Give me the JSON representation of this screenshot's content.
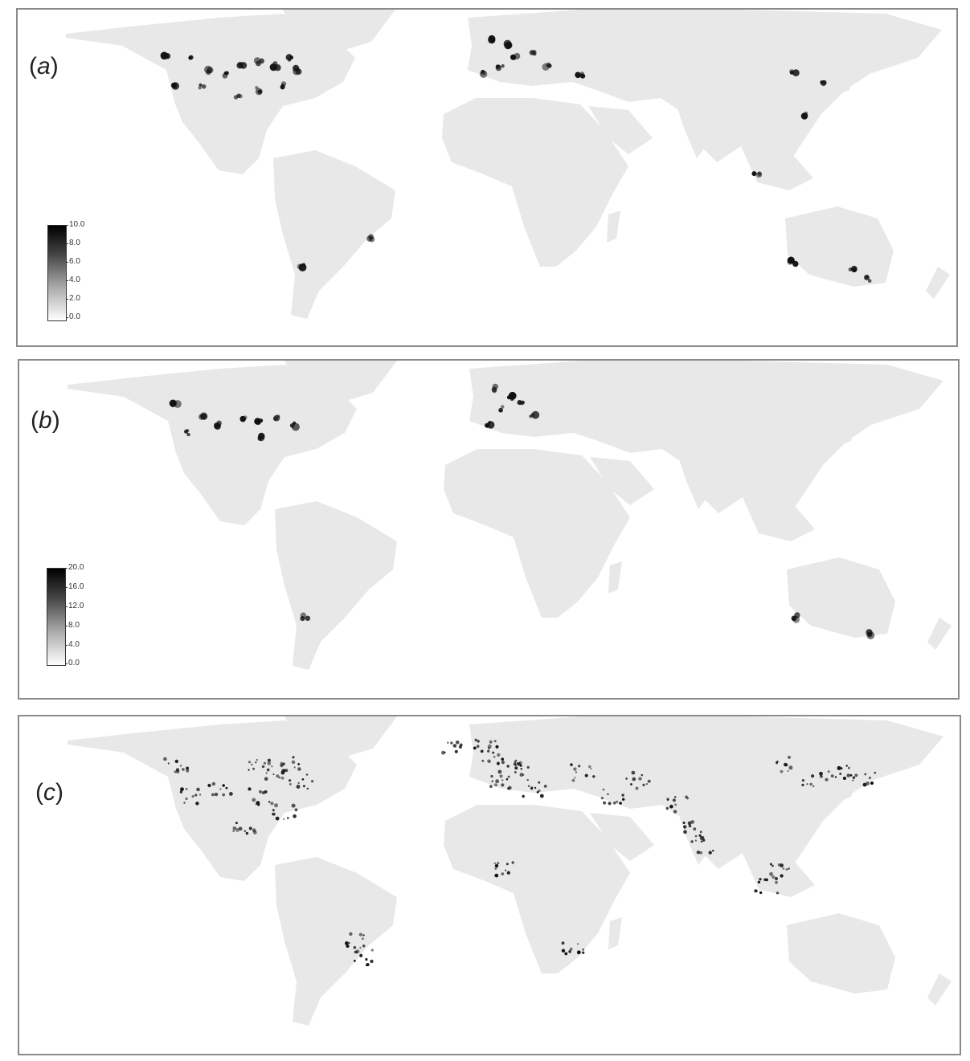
{
  "colors": {
    "land": "#e8e8e8",
    "frame": "#8a8a8a",
    "hotspot": "#111111"
  },
  "panels": [
    {
      "id": "a",
      "label_open": "(",
      "label_letter": "a",
      "label_close": ")",
      "legend_ticks": [
        "10.0",
        "8.0",
        "6.0",
        "4.0",
        "2.0",
        "0.0"
      ],
      "legend_range": [
        0,
        10
      ]
    },
    {
      "id": "b",
      "label_open": "(",
      "label_letter": "b",
      "label_close": ")",
      "legend_ticks": [
        "20.0",
        "16.0",
        "12.0",
        "8.0",
        "4.0",
        "0.0"
      ],
      "legend_range": [
        0,
        20
      ]
    },
    {
      "id": "c",
      "label_open": "(",
      "label_letter": "c",
      "label_close": ")"
    }
  ]
}
